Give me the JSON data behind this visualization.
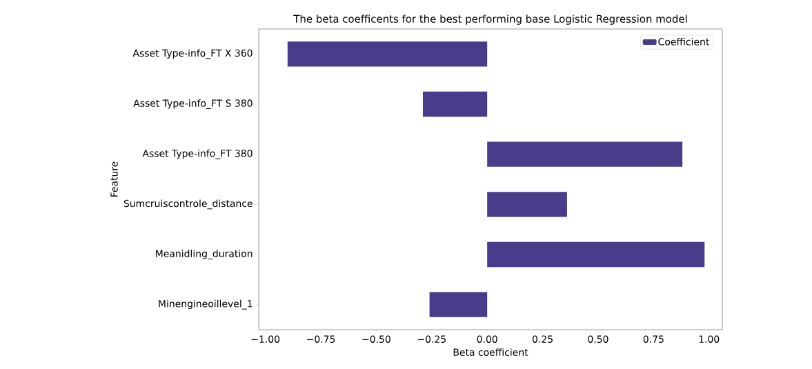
{
  "chart_data": {
    "type": "bar",
    "orientation": "horizontal",
    "title": "The beta coefficents for the best performing base Logistic Regression model",
    "xlabel": "Beta coefficient",
    "ylabel": "Feature",
    "categories": [
      "Asset Type-info_FT X 360",
      "Asset Type-info_FT S 380",
      "Asset Type-info_FT 380",
      "Sumcruiscontrole_distance",
      "Meanidling_duration",
      "Minengineoillevel_1"
    ],
    "series": [
      {
        "name": "Coefficient",
        "color": "#483d8b",
        "values": [
          -0.9,
          -0.29,
          0.88,
          0.36,
          0.98,
          -0.26
        ]
      }
    ],
    "xlim": [
      -1.03,
      1.06
    ],
    "xticks": [
      {
        "value": -1,
        "label": "−1.00"
      },
      {
        "value": -0.75,
        "label": "−0.75"
      },
      {
        "value": -0.5,
        "label": "−0.50"
      },
      {
        "value": -0.25,
        "label": "−0.25"
      },
      {
        "value": 0,
        "label": "0.00"
      },
      {
        "value": 0.25,
        "label": "0.25"
      },
      {
        "value": 0.5,
        "label": "0.50"
      },
      {
        "value": 0.75,
        "label": "0.75"
      },
      {
        "value": 1,
        "label": "1.00"
      }
    ],
    "legend": "top right"
  }
}
